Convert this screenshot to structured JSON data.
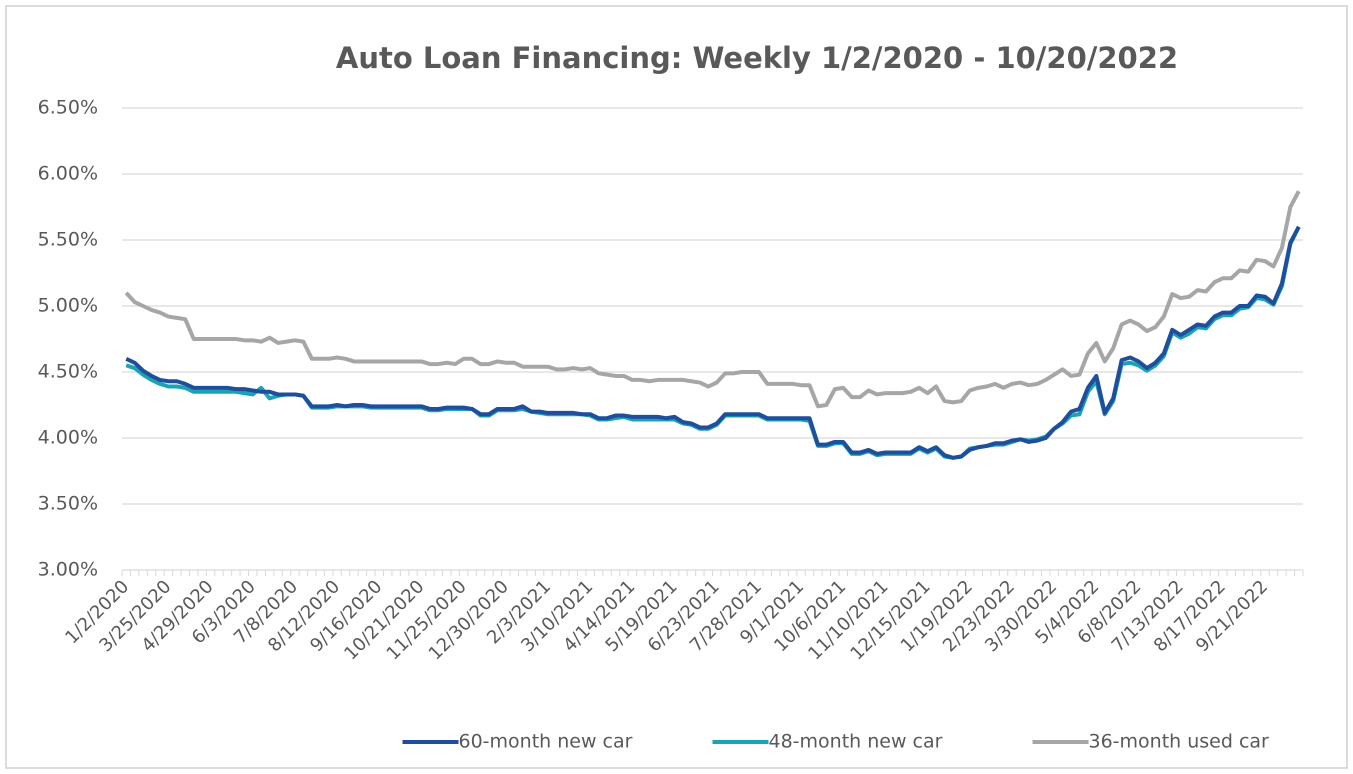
{
  "chart_data": {
    "type": "line",
    "title": "Auto Loan Financing: Weekly 1/2/2020 - 10/20/2022",
    "categories": [
      "1/2/2020",
      null,
      null,
      null,
      null,
      "3/25/2020",
      null,
      null,
      null,
      null,
      "4/29/2020",
      null,
      null,
      null,
      null,
      "6/3/2020",
      null,
      null,
      null,
      null,
      "7/8/2020",
      null,
      null,
      null,
      null,
      "8/12/2020",
      null,
      null,
      null,
      null,
      "9/16/2020",
      null,
      null,
      null,
      null,
      "10/21/2020",
      null,
      null,
      null,
      null,
      "11/25/2020",
      null,
      null,
      null,
      null,
      "12/30/2020",
      null,
      null,
      null,
      null,
      "2/3/2021",
      null,
      null,
      null,
      null,
      "3/10/2021",
      null,
      null,
      null,
      null,
      "4/14/2021",
      null,
      null,
      null,
      null,
      "5/19/2021",
      null,
      null,
      null,
      null,
      "6/23/2021",
      null,
      null,
      null,
      null,
      "7/28/2021",
      null,
      null,
      null,
      null,
      "9/1/2021",
      null,
      null,
      null,
      null,
      "10/6/2021",
      null,
      null,
      null,
      null,
      "11/10/2021",
      null,
      null,
      null,
      null,
      "12/15/2021",
      null,
      null,
      null,
      null,
      "1/19/2022",
      null,
      null,
      null,
      null,
      "2/23/2022",
      null,
      null,
      null,
      null,
      "3/30/2022",
      null,
      null,
      null,
      null,
      "5/4/2022",
      null,
      null,
      null,
      null,
      "6/8/2022",
      null,
      null,
      null,
      null,
      "7/13/2022",
      null,
      null,
      null,
      null,
      "8/17/2022",
      null,
      null,
      null,
      null,
      "9/21/2022",
      null,
      null,
      null,
      null
    ],
    "series": [
      {
        "name": "60-month new car",
        "color": "#1f4e9c",
        "values": [
          4.6,
          4.57,
          4.51,
          4.47,
          4.44,
          4.43,
          4.43,
          4.41,
          4.38,
          4.38,
          4.38,
          4.38,
          4.38,
          4.37,
          4.37,
          4.36,
          4.35,
          4.35,
          4.33,
          4.33,
          4.33,
          4.32,
          4.24,
          4.24,
          4.24,
          4.25,
          4.24,
          4.25,
          4.25,
          4.24,
          4.24,
          4.24,
          4.24,
          4.24,
          4.24,
          4.24,
          4.22,
          4.22,
          4.23,
          4.23,
          4.23,
          4.22,
          4.18,
          4.18,
          4.22,
          4.22,
          4.22,
          4.24,
          4.2,
          4.2,
          4.19,
          4.19,
          4.19,
          4.19,
          4.18,
          4.18,
          4.15,
          4.15,
          4.17,
          4.17,
          4.16,
          4.16,
          4.16,
          4.16,
          4.15,
          4.16,
          4.12,
          4.11,
          4.08,
          4.08,
          4.11,
          4.18,
          4.18,
          4.18,
          4.18,
          4.18,
          4.15,
          4.15,
          4.15,
          4.15,
          4.15,
          4.15,
          3.95,
          3.95,
          3.97,
          3.97,
          3.89,
          3.89,
          3.91,
          3.88,
          3.89,
          3.89,
          3.89,
          3.89,
          3.93,
          3.9,
          3.93,
          3.87,
          3.85,
          3.86,
          3.91,
          3.93,
          3.94,
          3.96,
          3.96,
          3.98,
          3.99,
          3.97,
          3.98,
          4.0,
          4.07,
          4.12,
          4.2,
          4.22,
          4.38,
          4.47,
          4.19,
          4.3,
          4.59,
          4.61,
          4.58,
          4.53,
          4.57,
          4.64,
          4.82,
          4.78,
          4.82,
          4.86,
          4.85,
          4.92,
          4.95,
          4.95,
          5.0,
          5.0,
          5.08,
          5.07,
          5.02,
          5.17,
          5.48,
          5.6
        ]
      },
      {
        "name": "48-month new car",
        "color": "#1aa3b5",
        "values": [
          4.55,
          4.53,
          4.48,
          4.44,
          4.41,
          4.39,
          4.39,
          4.38,
          4.35,
          4.35,
          4.35,
          4.35,
          4.35,
          4.35,
          4.34,
          4.33,
          4.38,
          4.3,
          4.32,
          4.33,
          4.33,
          4.32,
          4.23,
          4.23,
          4.23,
          4.24,
          4.24,
          4.24,
          4.24,
          4.23,
          4.23,
          4.23,
          4.23,
          4.23,
          4.23,
          4.23,
          4.21,
          4.21,
          4.22,
          4.22,
          4.22,
          4.22,
          4.17,
          4.17,
          4.21,
          4.21,
          4.21,
          4.22,
          4.2,
          4.19,
          4.18,
          4.18,
          4.18,
          4.18,
          4.18,
          4.17,
          4.14,
          4.14,
          4.15,
          4.16,
          4.14,
          4.14,
          4.14,
          4.14,
          4.14,
          4.14,
          4.11,
          4.1,
          4.07,
          4.07,
          4.1,
          4.17,
          4.17,
          4.17,
          4.17,
          4.17,
          4.14,
          4.14,
          4.14,
          4.14,
          4.14,
          4.13,
          3.94,
          3.94,
          3.96,
          3.96,
          3.88,
          3.88,
          3.9,
          3.87,
          3.88,
          3.88,
          3.88,
          3.88,
          3.92,
          3.89,
          3.92,
          3.86,
          3.85,
          3.86,
          3.92,
          3.93,
          3.94,
          3.95,
          3.95,
          3.97,
          3.99,
          3.98,
          3.99,
          4.01,
          4.07,
          4.11,
          4.17,
          4.18,
          4.35,
          4.43,
          4.18,
          4.28,
          4.56,
          4.57,
          4.55,
          4.51,
          4.55,
          4.62,
          4.8,
          4.76,
          4.79,
          4.84,
          4.83,
          4.9,
          4.93,
          4.93,
          4.98,
          4.99,
          5.06,
          5.05,
          5.01,
          5.15,
          5.47,
          5.6
        ]
      },
      {
        "name": "36-month used car",
        "color": "#a6a6a6",
        "values": [
          5.1,
          5.03,
          5.0,
          4.97,
          4.95,
          4.92,
          4.91,
          4.9,
          4.75,
          4.75,
          4.75,
          4.75,
          4.75,
          4.75,
          4.74,
          4.74,
          4.73,
          4.76,
          4.72,
          4.73,
          4.74,
          4.73,
          4.6,
          4.6,
          4.6,
          4.61,
          4.6,
          4.58,
          4.58,
          4.58,
          4.58,
          4.58,
          4.58,
          4.58,
          4.58,
          4.58,
          4.56,
          4.56,
          4.57,
          4.56,
          4.6,
          4.6,
          4.56,
          4.56,
          4.58,
          4.57,
          4.57,
          4.54,
          4.54,
          4.54,
          4.54,
          4.52,
          4.52,
          4.53,
          4.52,
          4.53,
          4.49,
          4.48,
          4.47,
          4.47,
          4.44,
          4.44,
          4.43,
          4.44,
          4.44,
          4.44,
          4.44,
          4.43,
          4.42,
          4.39,
          4.42,
          4.49,
          4.49,
          4.5,
          4.5,
          4.5,
          4.41,
          4.41,
          4.41,
          4.41,
          4.4,
          4.4,
          4.24,
          4.25,
          4.37,
          4.38,
          4.31,
          4.31,
          4.36,
          4.33,
          4.34,
          4.34,
          4.34,
          4.35,
          4.38,
          4.34,
          4.39,
          4.28,
          4.27,
          4.28,
          4.36,
          4.38,
          4.39,
          4.41,
          4.38,
          4.41,
          4.42,
          4.4,
          4.41,
          4.44,
          4.48,
          4.52,
          4.47,
          4.48,
          4.64,
          4.72,
          4.58,
          4.68,
          4.86,
          4.89,
          4.86,
          4.81,
          4.84,
          4.92,
          5.09,
          5.06,
          5.07,
          5.12,
          5.11,
          5.18,
          5.21,
          5.21,
          5.27,
          5.26,
          5.35,
          5.34,
          5.3,
          5.44,
          5.75,
          5.87
        ]
      }
    ],
    "ylim": [
      3.0,
      6.5
    ],
    "yticks": [
      {
        "value": 3.0,
        "label": "3.00%"
      },
      {
        "value": 3.5,
        "label": "3.50%"
      },
      {
        "value": 4.0,
        "label": "4.00%"
      },
      {
        "value": 4.5,
        "label": "4.50%"
      },
      {
        "value": 5.0,
        "label": "5.00%"
      },
      {
        "value": 5.5,
        "label": "5.50%"
      },
      {
        "value": 6.0,
        "label": "6.00%"
      },
      {
        "value": 6.5,
        "label": "6.50%"
      }
    ],
    "grid": true,
    "legend": "bottom"
  }
}
